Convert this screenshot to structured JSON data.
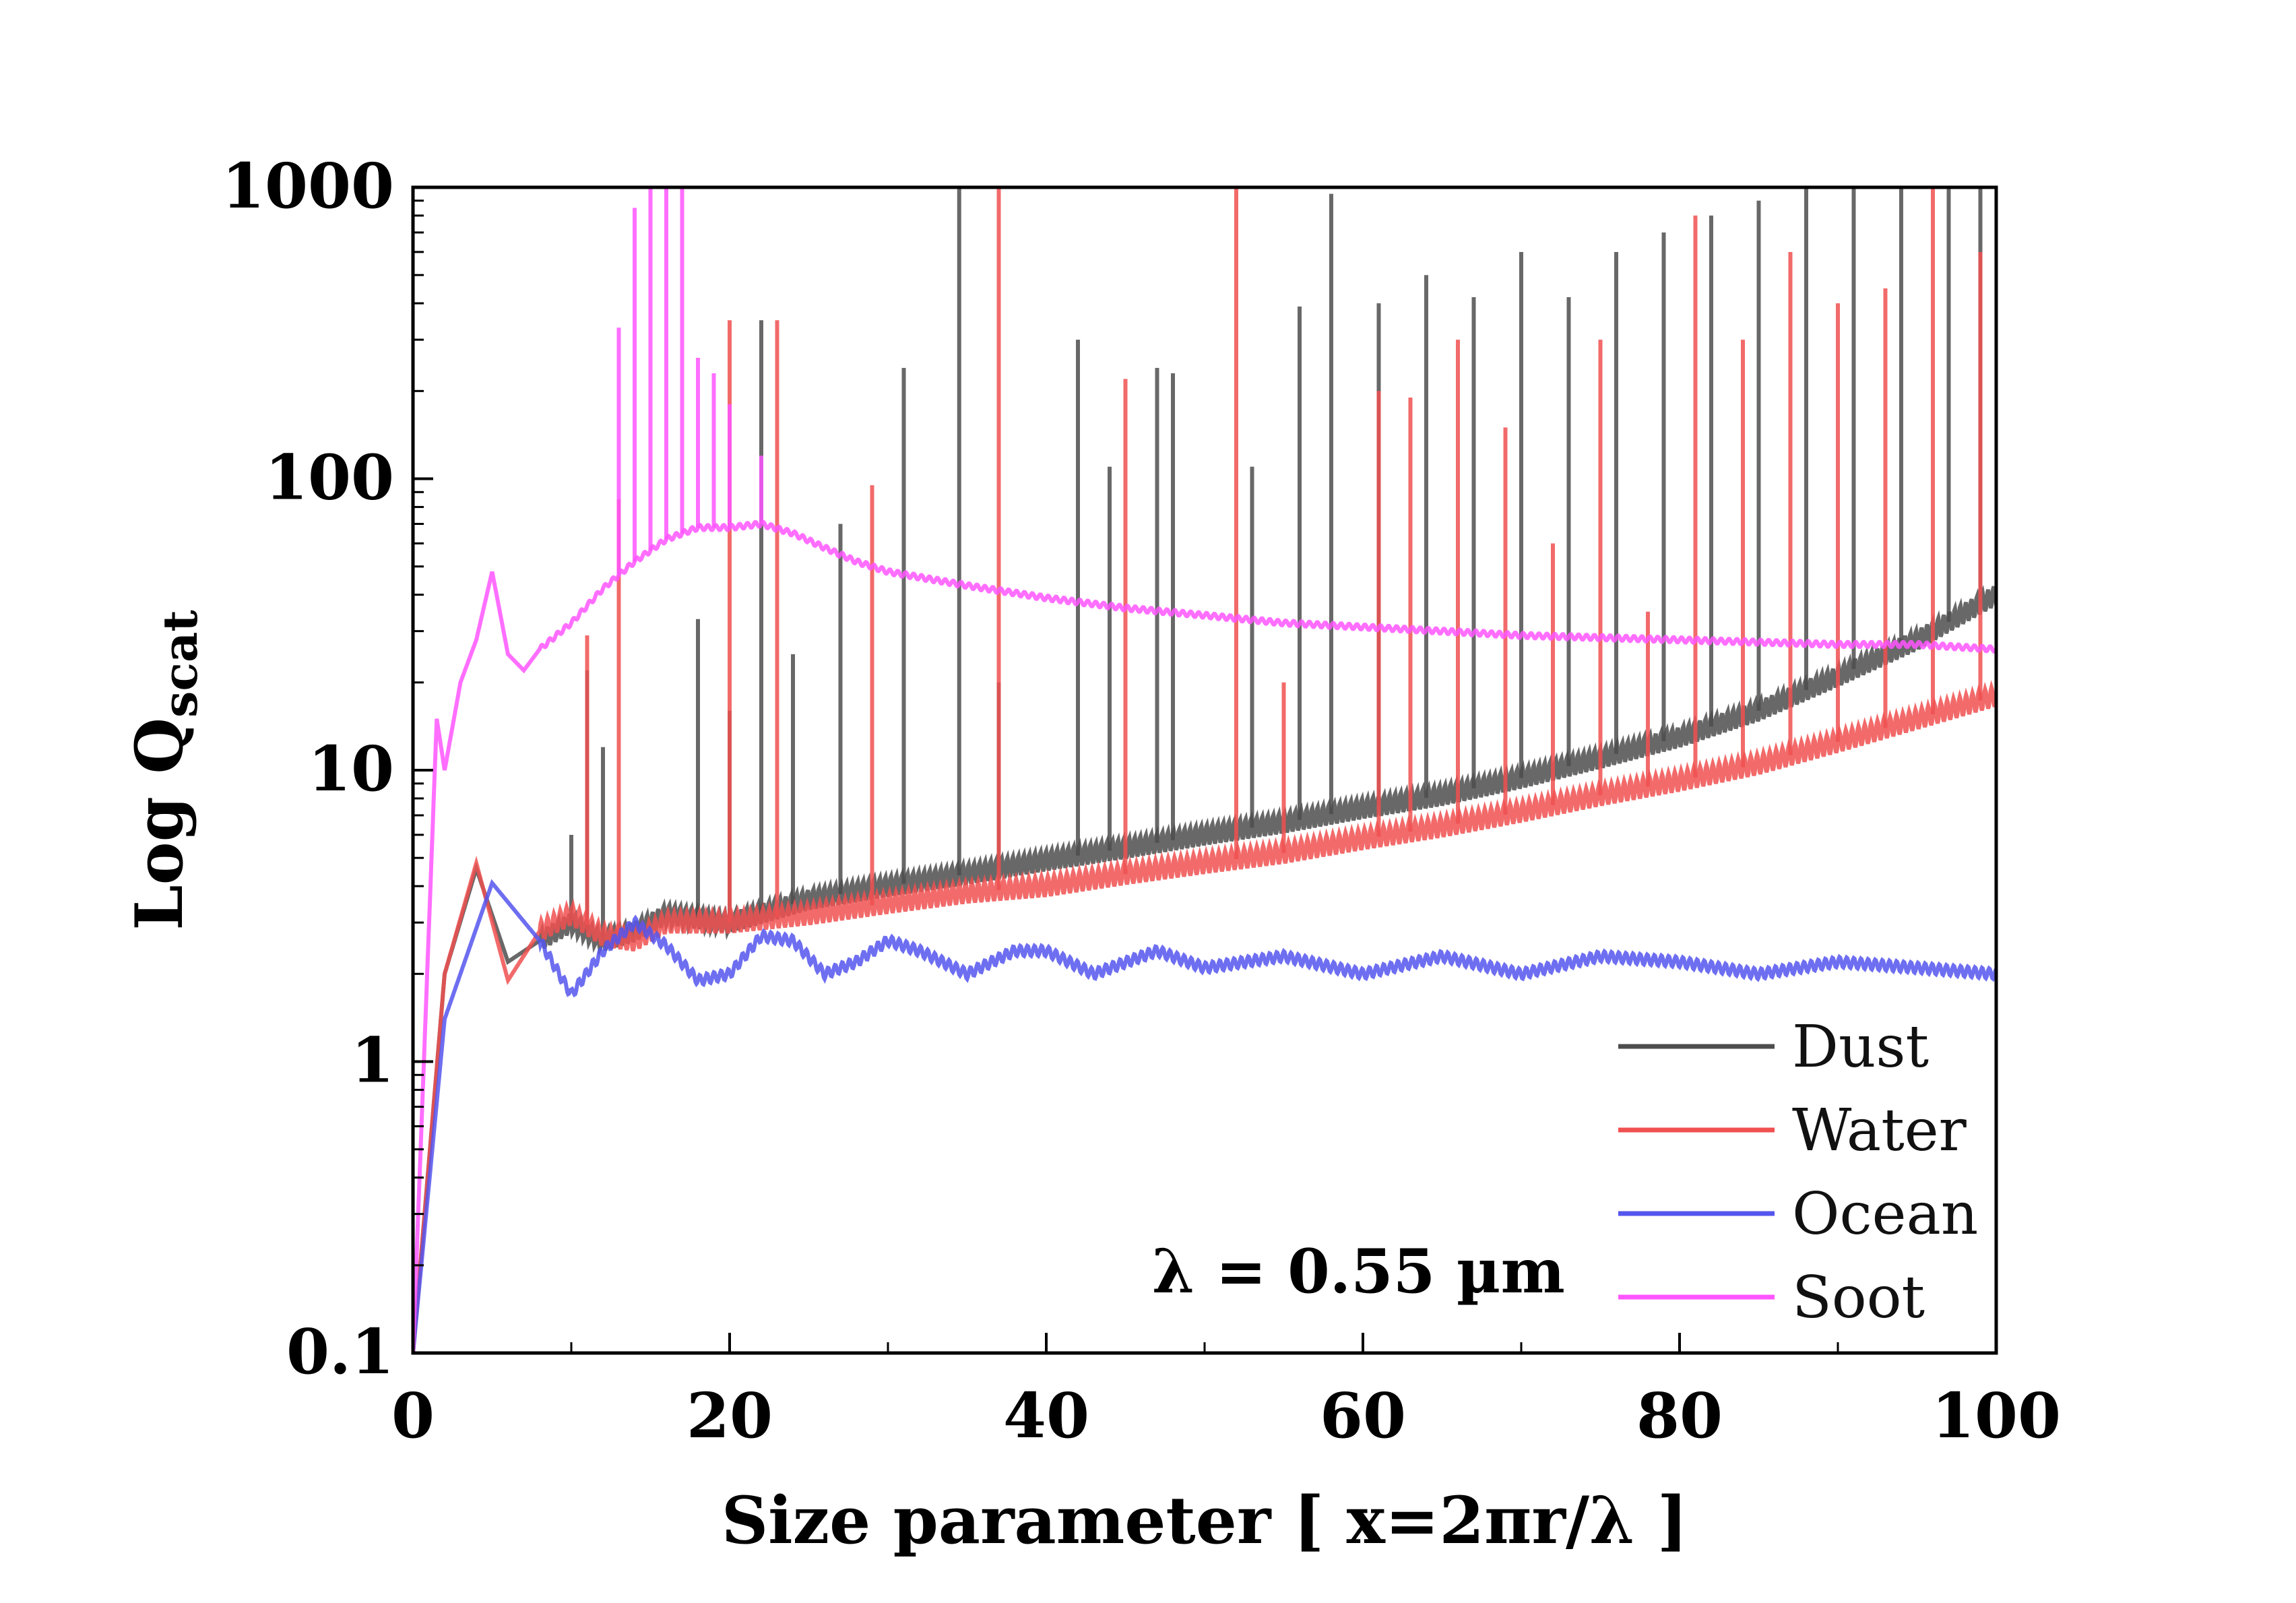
{
  "chart_data": {
    "type": "line",
    "xlabel": "Size  parameter  [ x=2πr/λ ]",
    "ylabel_main": "Log  Q",
    "ylabel_sub": "scat",
    "xlim": [
      0,
      100
    ],
    "ylim": [
      0.1,
      1000
    ],
    "yscale": "log",
    "x_ticks": [
      0,
      20,
      40,
      60,
      80,
      100
    ],
    "x_tick_labels": [
      "0",
      "20",
      "40",
      "60",
      "80",
      "100"
    ],
    "y_ticks": [
      0.1,
      1,
      10,
      100,
      1000
    ],
    "y_tick_labels": [
      "0.1",
      "1",
      "10",
      "100",
      "1000"
    ],
    "annotation": "λ = 0.55 µm",
    "legend_position": "bottom-right",
    "grid": false,
    "series": [
      {
        "name": "Dust",
        "color": "#4d4d4d",
        "baseline": [
          [
            0,
            0.1
          ],
          [
            2,
            2.0
          ],
          [
            4,
            4.6
          ],
          [
            6,
            2.2
          ],
          [
            8,
            2.6
          ],
          [
            10,
            3.0
          ],
          [
            12,
            2.6
          ],
          [
            14,
            2.8
          ],
          [
            16,
            3.2
          ],
          [
            20,
            3.0
          ],
          [
            25,
            3.6
          ],
          [
            30,
            4.0
          ],
          [
            35,
            4.4
          ],
          [
            40,
            4.9
          ],
          [
            45,
            5.4
          ],
          [
            50,
            6.0
          ],
          [
            55,
            6.6
          ],
          [
            60,
            7.4
          ],
          [
            65,
            8.2
          ],
          [
            70,
            9.4
          ],
          [
            75,
            11
          ],
          [
            80,
            13
          ],
          [
            85,
            16
          ],
          [
            90,
            21
          ],
          [
            95,
            28
          ],
          [
            100,
            40
          ]
        ],
        "peaks": [
          [
            10,
            6
          ],
          [
            11,
            22
          ],
          [
            12,
            12
          ],
          [
            18,
            33
          ],
          [
            20,
            16
          ],
          [
            22,
            350
          ],
          [
            24,
            25
          ],
          [
            27,
            70
          ],
          [
            31,
            240
          ],
          [
            34.5,
            1000
          ],
          [
            37,
            20
          ],
          [
            42,
            300
          ],
          [
            44,
            110
          ],
          [
            47,
            240
          ],
          [
            48,
            230
          ],
          [
            53,
            110
          ],
          [
            56,
            390
          ],
          [
            58,
            950
          ],
          [
            61,
            400
          ],
          [
            64,
            500
          ],
          [
            67,
            420
          ],
          [
            70,
            600
          ],
          [
            73,
            420
          ],
          [
            76,
            600
          ],
          [
            79,
            700
          ],
          [
            82,
            800
          ],
          [
            85,
            900
          ],
          [
            88,
            1000
          ],
          [
            91,
            1000
          ],
          [
            94,
            1000
          ],
          [
            97,
            1000
          ],
          [
            99,
            1000
          ]
        ]
      },
      {
        "name": "Water",
        "color": "#f05050",
        "baseline": [
          [
            0,
            0.1
          ],
          [
            2,
            2.0
          ],
          [
            4,
            4.8
          ],
          [
            6,
            1.9
          ],
          [
            8,
            2.8
          ],
          [
            10,
            3.2
          ],
          [
            12,
            2.7
          ],
          [
            14,
            2.6
          ],
          [
            16,
            3.0
          ],
          [
            20,
            3.0
          ],
          [
            25,
            3.2
          ],
          [
            30,
            3.5
          ],
          [
            35,
            3.8
          ],
          [
            40,
            4.0
          ],
          [
            45,
            4.4
          ],
          [
            50,
            4.8
          ],
          [
            55,
            5.2
          ],
          [
            60,
            5.8
          ],
          [
            65,
            6.4
          ],
          [
            70,
            7.2
          ],
          [
            75,
            8.2
          ],
          [
            80,
            9.2
          ],
          [
            85,
            10.5
          ],
          [
            90,
            12.5
          ],
          [
            95,
            15
          ],
          [
            100,
            18
          ]
        ],
        "peaks": [
          [
            11,
            29
          ],
          [
            13,
            85
          ],
          [
            20,
            350
          ],
          [
            23,
            350
          ],
          [
            29,
            95
          ],
          [
            37,
            1000
          ],
          [
            45,
            220
          ],
          [
            52,
            1000
          ],
          [
            55,
            20
          ],
          [
            61,
            200
          ],
          [
            63,
            190
          ],
          [
            66,
            300
          ],
          [
            69,
            150
          ],
          [
            72,
            60
          ],
          [
            75,
            300
          ],
          [
            78,
            35
          ],
          [
            81,
            800
          ],
          [
            84,
            300
          ],
          [
            87,
            600
          ],
          [
            90,
            400
          ],
          [
            93,
            450
          ],
          [
            96,
            1000
          ],
          [
            99,
            600
          ]
        ]
      },
      {
        "name": "Ocean",
        "color": "#5555ee",
        "baseline": [
          [
            0,
            0.1
          ],
          [
            2,
            1.4
          ],
          [
            5,
            4.1
          ],
          [
            8,
            2.6
          ],
          [
            10,
            1.7
          ],
          [
            12,
            2.4
          ],
          [
            14,
            3.0
          ],
          [
            16,
            2.5
          ],
          [
            18,
            1.9
          ],
          [
            20,
            2.0
          ],
          [
            22,
            2.7
          ],
          [
            24,
            2.6
          ],
          [
            26,
            2.0
          ],
          [
            28,
            2.2
          ],
          [
            30,
            2.6
          ],
          [
            32,
            2.4
          ],
          [
            35,
            2.0
          ],
          [
            38,
            2.4
          ],
          [
            40,
            2.4
          ],
          [
            43,
            2.0
          ],
          [
            47,
            2.4
          ],
          [
            50,
            2.1
          ],
          [
            55,
            2.3
          ],
          [
            60,
            2.0
          ],
          [
            65,
            2.3
          ],
          [
            70,
            2.0
          ],
          [
            75,
            2.3
          ],
          [
            80,
            2.2
          ],
          [
            85,
            2.0
          ],
          [
            90,
            2.2
          ],
          [
            95,
            2.1
          ],
          [
            100,
            2.0
          ]
        ],
        "peaks": []
      },
      {
        "name": "Soot",
        "color": "#ff55ff",
        "baseline": [
          [
            0,
            0.1
          ],
          [
            1.5,
            15
          ],
          [
            2,
            10
          ],
          [
            3,
            20
          ],
          [
            4,
            28
          ],
          [
            5,
            48
          ],
          [
            6,
            25
          ],
          [
            7,
            22
          ],
          [
            8,
            26
          ],
          [
            10,
            32
          ],
          [
            12,
            42
          ],
          [
            14,
            52
          ],
          [
            16,
            62
          ],
          [
            18,
            68
          ],
          [
            20,
            68
          ],
          [
            22,
            70
          ],
          [
            24,
            65
          ],
          [
            26,
            58
          ],
          [
            28,
            52
          ],
          [
            30,
            48
          ],
          [
            35,
            43
          ],
          [
            40,
            39
          ],
          [
            45,
            36
          ],
          [
            50,
            34
          ],
          [
            55,
            32
          ],
          [
            60,
            31
          ],
          [
            65,
            30
          ],
          [
            70,
            29
          ],
          [
            75,
            28.5
          ],
          [
            80,
            28
          ],
          [
            85,
            27.5
          ],
          [
            90,
            27
          ],
          [
            95,
            27
          ],
          [
            100,
            26
          ]
        ],
        "peaks": [
          [
            13,
            330
          ],
          [
            14,
            850
          ],
          [
            15,
            1000
          ],
          [
            16,
            1000
          ],
          [
            17,
            1000
          ],
          [
            18,
            260
          ],
          [
            19,
            230
          ],
          [
            20,
            180
          ],
          [
            22,
            120
          ]
        ]
      }
    ]
  }
}
